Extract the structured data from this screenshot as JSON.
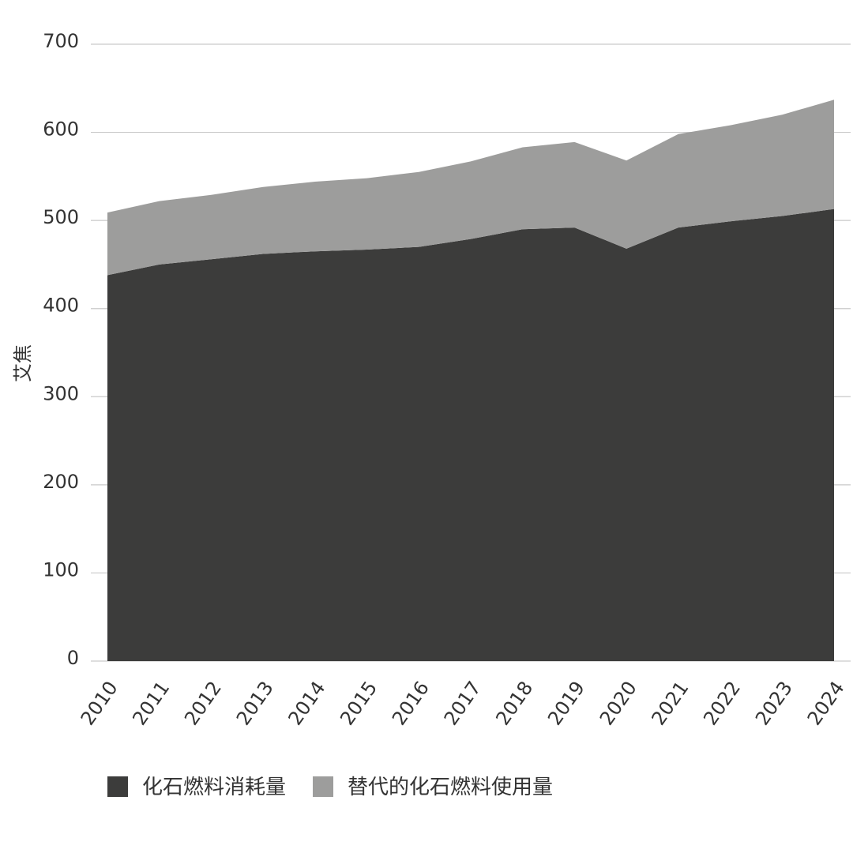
{
  "chart_data": {
    "type": "area",
    "stacked": true,
    "title": "",
    "xlabel": "",
    "ylabel": "艾焦",
    "ylim": [
      0,
      700
    ],
    "yticks": [
      0,
      100,
      200,
      300,
      400,
      500,
      600,
      700
    ],
    "grid": "horizontal",
    "legend_position": "bottom-left",
    "x": [
      "2010",
      "2011",
      "2012",
      "2013",
      "2014",
      "2015",
      "2016",
      "2017",
      "2018",
      "2019",
      "2020",
      "2021",
      "2022",
      "2023",
      "2024"
    ],
    "series": [
      {
        "name": "化石燃料消耗量",
        "color": "#3c3c3b",
        "values": [
          438,
          450,
          456,
          462,
          465,
          467,
          470,
          479,
          490,
          492,
          468,
          492,
          499,
          505,
          513
        ]
      },
      {
        "name": "替代的化石燃料使用量",
        "color": "#9d9d9c",
        "values": [
          71,
          72,
          73,
          76,
          79,
          81,
          85,
          88,
          93,
          97,
          100,
          106,
          109,
          115,
          124
        ]
      }
    ]
  }
}
